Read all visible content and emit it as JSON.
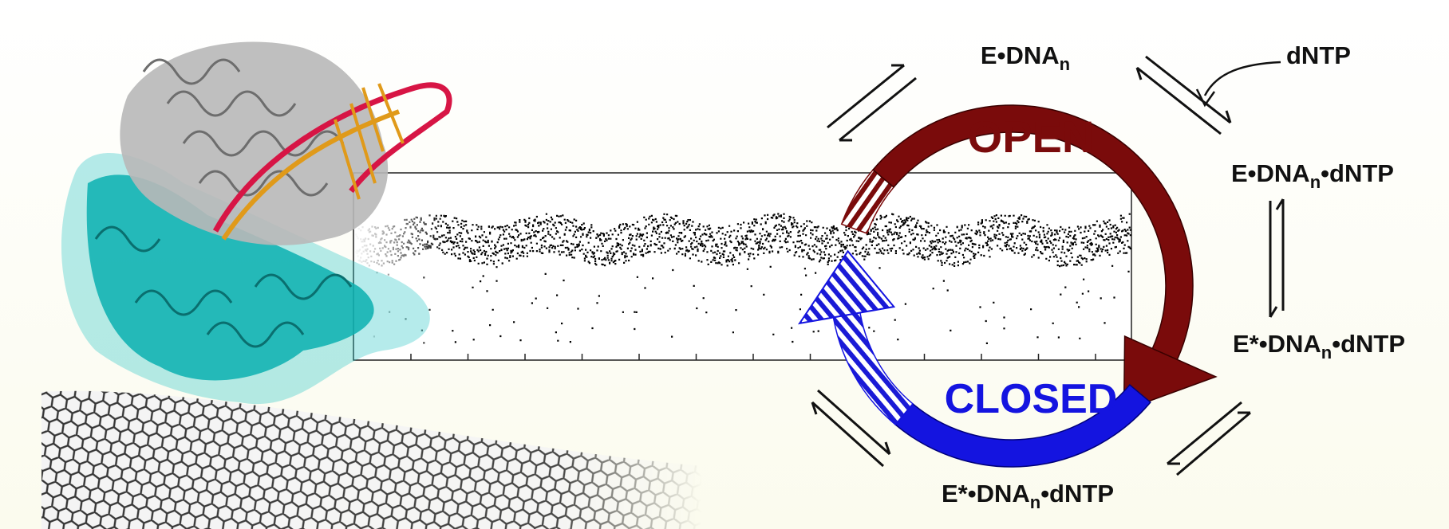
{
  "labels": {
    "e_dna": [
      "E•DNA",
      "n"
    ],
    "dntp": "dNTP",
    "open": "OPEN",
    "e_dna_dntp": [
      "E•DNA",
      "n",
      "•dNTP"
    ],
    "estar_right": [
      "E*•DNA",
      "n",
      "•dNTP"
    ],
    "closed": "CLOSED",
    "estar_bottom": [
      "E*•DNA",
      "n",
      "•dNTP"
    ]
  }
}
